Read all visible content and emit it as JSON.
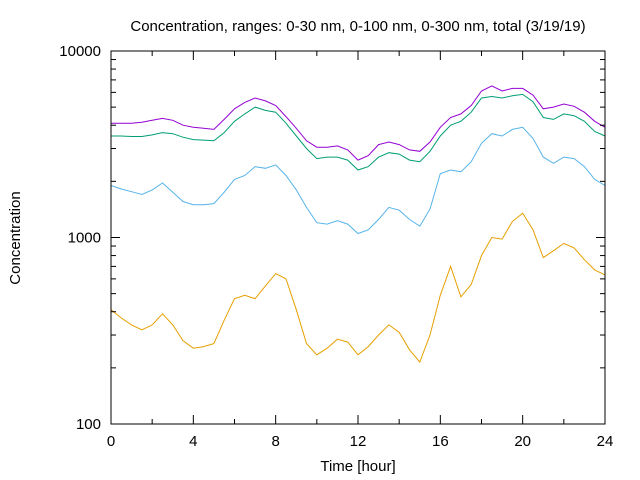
{
  "chart_data": {
    "type": "line",
    "title": "Concentration, ranges: 0-30 nm, 0-100 nm, 0-300 nm, total (3/19/19)",
    "xlabel": "Time [hour]",
    "ylabel": "Concentration",
    "xlim": [
      0,
      24
    ],
    "ylim": [
      100,
      10000
    ],
    "yscale": "log",
    "grid": false,
    "legend": "none",
    "xticks": [
      0,
      4,
      8,
      12,
      16,
      20,
      24
    ],
    "xtick_labels": [
      "0",
      "4",
      "8",
      "12",
      "16",
      "20",
      "24"
    ],
    "yticks": [
      100,
      1000,
      10000
    ],
    "ytick_labels": [
      "100",
      "1000",
      "10000"
    ],
    "x": [
      0,
      0.5,
      1,
      1.5,
      2,
      2.5,
      3,
      3.5,
      4,
      4.5,
      5,
      5.5,
      6,
      6.5,
      7,
      7.5,
      8,
      8.5,
      9,
      9.5,
      10,
      10.5,
      11,
      11.5,
      12,
      12.5,
      13,
      13.5,
      14,
      14.5,
      15,
      15.5,
      16,
      16.5,
      17,
      17.5,
      18,
      18.5,
      19,
      19.5,
      20,
      20.5,
      21,
      21.5,
      22,
      22.5,
      23,
      23.5,
      24
    ],
    "series": [
      {
        "color": "#e69f00",
        "values": [
          410,
          370,
          340,
          320,
          340,
          390,
          340,
          280,
          255,
          260,
          270,
          360,
          470,
          490,
          470,
          550,
          640,
          600,
          410,
          270,
          235,
          255,
          285,
          275,
          235,
          260,
          300,
          340,
          310,
          250,
          215,
          300,
          490,
          700,
          480,
          560,
          800,
          1000,
          980,
          1220,
          1350,
          1100,
          780,
          850,
          930,
          880,
          760,
          670,
          630
        ]
      },
      {
        "color": "#56b4e9",
        "values": [
          1900,
          1820,
          1760,
          1700,
          1800,
          1960,
          1750,
          1560,
          1500,
          1500,
          1520,
          1750,
          2050,
          2150,
          2400,
          2350,
          2450,
          2150,
          1800,
          1450,
          1200,
          1180,
          1230,
          1180,
          1050,
          1100,
          1250,
          1450,
          1400,
          1250,
          1150,
          1420,
          2200,
          2300,
          2250,
          2550,
          3200,
          3600,
          3500,
          3800,
          3900,
          3400,
          2700,
          2500,
          2700,
          2650,
          2400,
          2050,
          1900
        ]
      },
      {
        "color": "#009e73",
        "values": [
          3500,
          3500,
          3480,
          3480,
          3550,
          3650,
          3600,
          3450,
          3350,
          3330,
          3300,
          3650,
          4200,
          4600,
          5000,
          4800,
          4700,
          4100,
          3500,
          3000,
          2650,
          2700,
          2700,
          2600,
          2300,
          2400,
          2700,
          2850,
          2800,
          2600,
          2550,
          2900,
          3500,
          4000,
          4200,
          4700,
          5600,
          5700,
          5600,
          5750,
          5850,
          5350,
          4400,
          4300,
          4600,
          4500,
          4200,
          3700,
          3500
        ]
      },
      {
        "color": "#9400d3",
        "values": [
          4100,
          4100,
          4100,
          4150,
          4250,
          4350,
          4250,
          4000,
          3900,
          3850,
          3800,
          4300,
          4900,
          5300,
          5600,
          5400,
          5100,
          4450,
          3850,
          3300,
          3050,
          3050,
          3100,
          2950,
          2600,
          2750,
          3150,
          3250,
          3150,
          2950,
          2900,
          3250,
          3900,
          4400,
          4600,
          5100,
          6100,
          6500,
          6100,
          6300,
          6300,
          5800,
          4900,
          5000,
          5200,
          5050,
          4700,
          4200,
          3900
        ]
      }
    ]
  }
}
